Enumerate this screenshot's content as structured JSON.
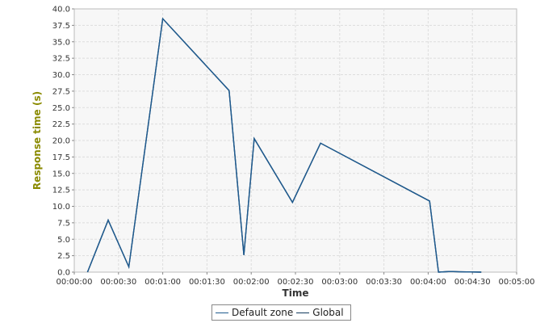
{
  "chart_data": {
    "type": "line",
    "title": "",
    "xlabel": "Time",
    "ylabel": "Response time (s)",
    "x_unit": "seconds",
    "xlim": [
      0,
      300
    ],
    "ylim": [
      0,
      40
    ],
    "x_ticks": [
      0,
      30,
      60,
      90,
      120,
      150,
      180,
      210,
      240,
      270,
      300
    ],
    "x_tick_labels": [
      "00:00:00",
      "00:00:30",
      "00:01:00",
      "00:01:30",
      "00:02:00",
      "00:02:30",
      "00:03:00",
      "00:03:30",
      "00:04:00",
      "00:04:30",
      "00:05:00"
    ],
    "y_ticks": [
      0,
      2.5,
      5,
      7.5,
      10,
      12.5,
      15,
      17.5,
      20,
      22.5,
      25,
      27.5,
      30,
      32.5,
      35,
      37.5,
      40
    ],
    "y_tick_labels": [
      "0.0",
      "2.5",
      "5.0",
      "7.5",
      "10.0",
      "12.5",
      "15.0",
      "17.5",
      "20.0",
      "22.5",
      "25.0",
      "27.5",
      "30.0",
      "32.5",
      "35.0",
      "37.5",
      "40.0"
    ],
    "grid": true,
    "legend_position": "bottom-center",
    "series": [
      {
        "name": "Default zone",
        "color": "#1f5b8f",
        "x": [
          9,
          23,
          37,
          60,
          105,
          115,
          122,
          148,
          167,
          241,
          247,
          255,
          261,
          276
        ],
        "y": [
          0,
          7.9,
          0.8,
          38.5,
          27.6,
          2.6,
          20.3,
          10.6,
          19.6,
          10.8,
          0,
          0.1,
          0.05,
          0
        ]
      },
      {
        "name": "Global",
        "color": "#123a5e",
        "x": [
          9,
          23,
          37,
          60,
          105,
          115,
          122,
          148,
          167,
          241,
          247,
          255,
          261,
          276
        ],
        "y": [
          0,
          7.9,
          0.8,
          38.5,
          27.6,
          2.6,
          20.3,
          10.6,
          19.6,
          10.8,
          0,
          0.1,
          0.05,
          0
        ]
      }
    ]
  }
}
